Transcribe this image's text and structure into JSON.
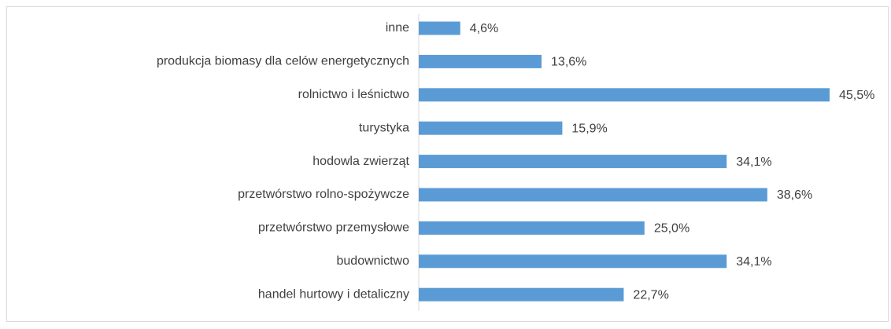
{
  "chart_data": {
    "type": "bar",
    "orientation": "horizontal",
    "categories": [
      "inne",
      "produkcja biomasy dla celów energetycznych",
      "rolnictwo i leśnictwo",
      "turystyka",
      "hodowla zwierząt",
      "przetwórstwo rolno-spożywcze",
      "przetwórstwo przemysłowe",
      "budownictwo",
      "handel hurtowy i detaliczny"
    ],
    "values": [
      4.6,
      13.6,
      45.5,
      15.9,
      34.1,
      38.6,
      25.0,
      34.1,
      22.7
    ],
    "value_labels": [
      "4,6%",
      "13,6%",
      "45,5%",
      "15,9%",
      "34,1%",
      "38,6%",
      "25,0%",
      "34,1%",
      "22,7%"
    ],
    "color": "#5b9bd5"
  }
}
